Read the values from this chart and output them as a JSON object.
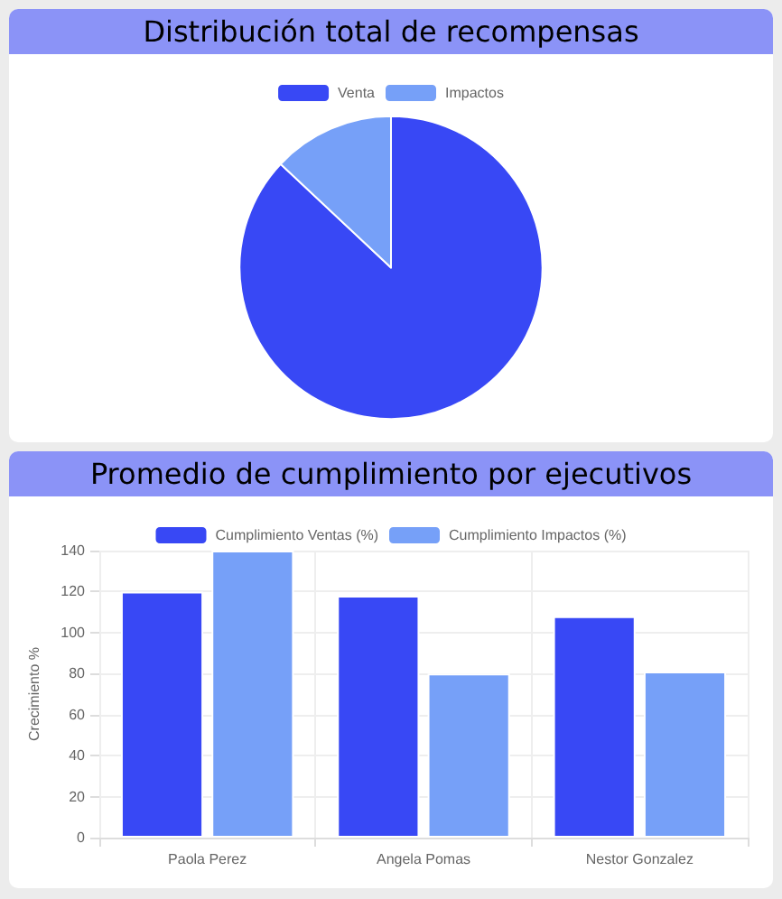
{
  "chart_data": [
    {
      "type": "pie",
      "title": "Distribución total de recompensas",
      "categories": [
        "Venta",
        "Impactos"
      ],
      "values": [
        87,
        13
      ],
      "colors": [
        "#3848f5",
        "#76a0f8"
      ],
      "legend": "top"
    },
    {
      "type": "bar",
      "title": "Promedio de cumplimiento por ejecutivos",
      "ylabel": "Crecimiento %",
      "categories": [
        "Paola Perez",
        "Angela Pomas",
        "Nestor Gonzalez"
      ],
      "series": [
        {
          "name": "Cumplimiento Ventas (%)",
          "color": "#3848f5",
          "values": [
            120,
            118,
            108
          ]
        },
        {
          "name": "Cumplimiento Impactos (%)",
          "color": "#76a0f8",
          "values": [
            140,
            80,
            81
          ]
        }
      ],
      "ylim": [
        0,
        140
      ],
      "yticks": [
        0,
        20,
        40,
        60,
        80,
        100,
        120,
        140
      ],
      "grid": true,
      "legend": "top"
    }
  ]
}
